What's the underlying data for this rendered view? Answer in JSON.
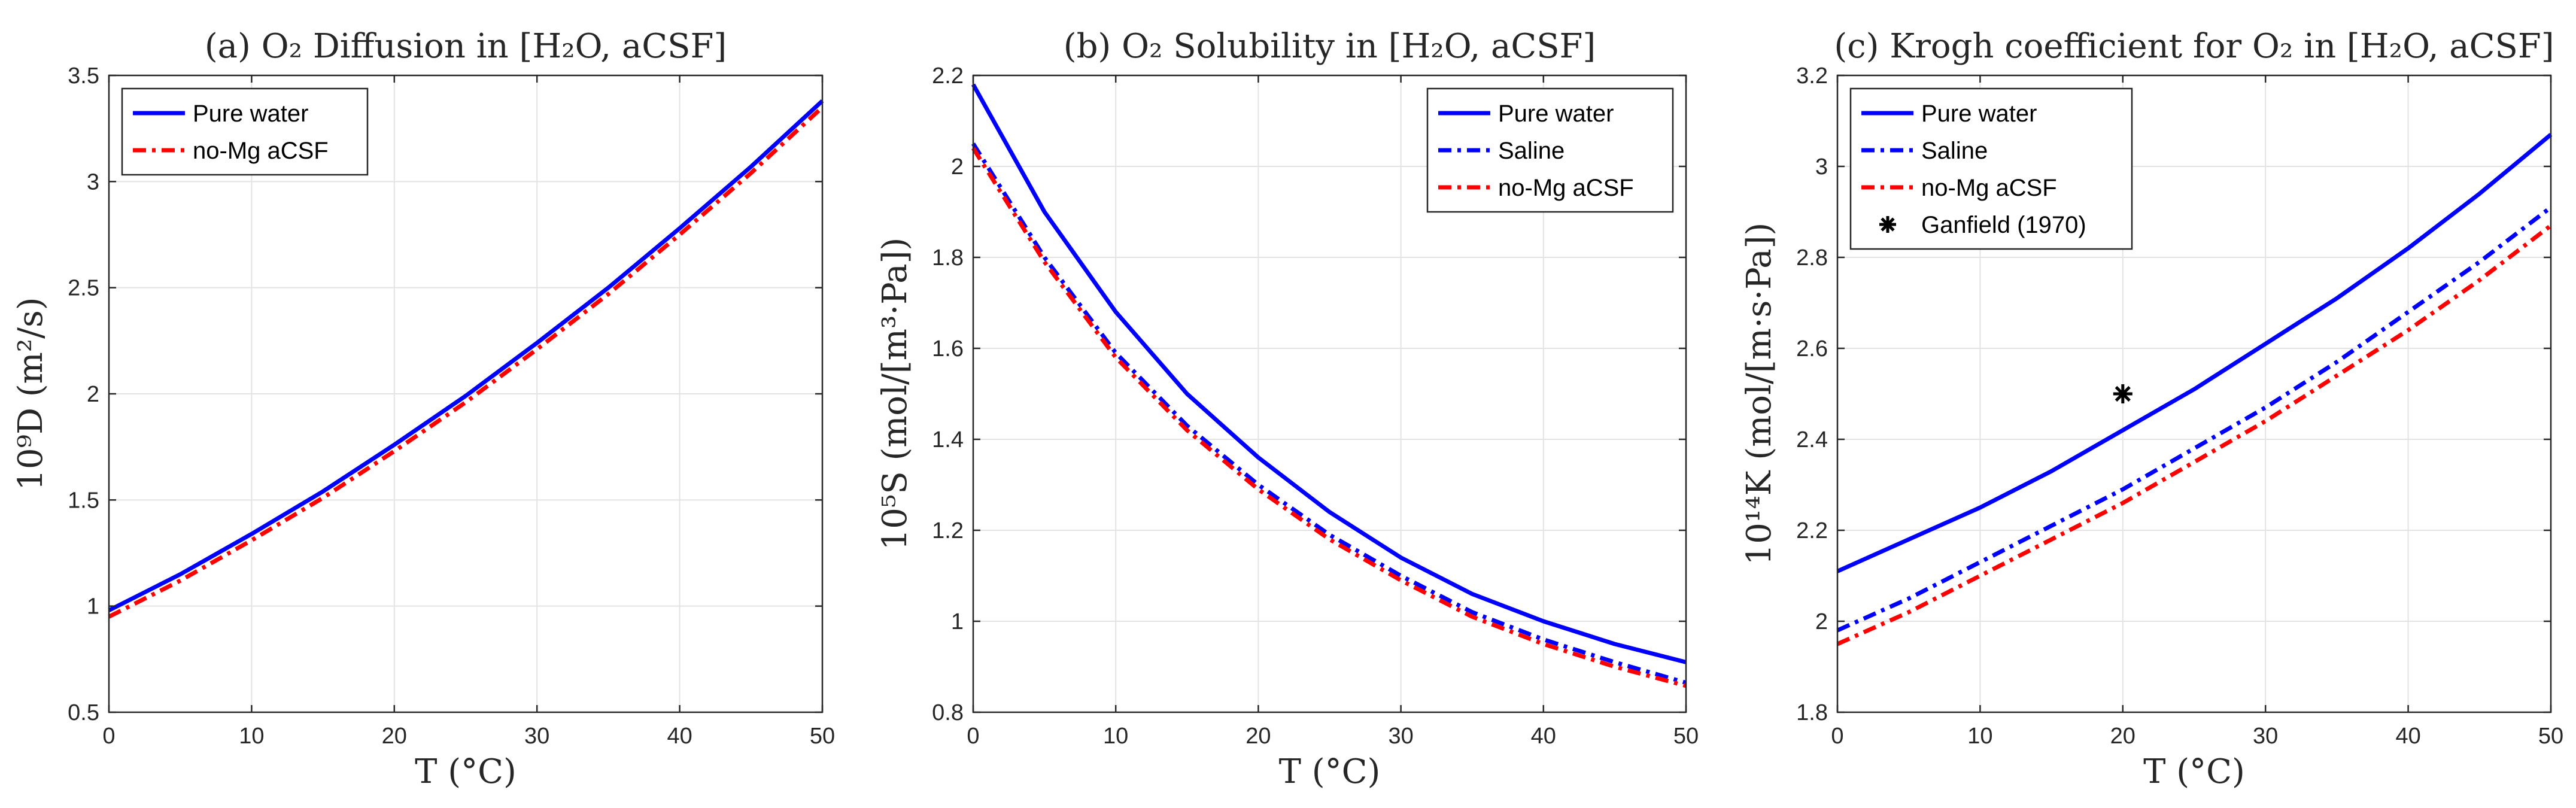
{
  "chart_data": [
    {
      "type": "line",
      "id": "a",
      "title": "(a) O₂ Diffusion in [H₂O, aCSF]",
      "xlabel": "T (°C)",
      "ylabel": "10⁹D (m²/s)",
      "xlim": [
        0,
        50
      ],
      "ylim": [
        0.5,
        3.5
      ],
      "xticks": [
        0,
        10,
        20,
        30,
        40,
        50
      ],
      "yticks": [
        0.5,
        1,
        1.5,
        2,
        2.5,
        3,
        3.5
      ],
      "ytick_labels": [
        "0.5",
        "1",
        "1.5",
        "2",
        "2.5",
        "3",
        "3.5"
      ],
      "grid": true,
      "legend_position": "top-left",
      "x": [
        0,
        5,
        10,
        15,
        20,
        25,
        30,
        35,
        40,
        45,
        50
      ],
      "series": [
        {
          "name": "Pure water",
          "color": "#0000ff",
          "style": "solid",
          "values": [
            0.98,
            1.15,
            1.34,
            1.54,
            1.76,
            1.99,
            2.24,
            2.5,
            2.78,
            3.07,
            3.38
          ]
        },
        {
          "name": "no-Mg aCSF",
          "color": "#ff0000",
          "style": "dashdot",
          "values": [
            0.95,
            1.12,
            1.31,
            1.51,
            1.73,
            1.96,
            2.21,
            2.47,
            2.75,
            3.04,
            3.35
          ]
        }
      ],
      "legend": [
        "Pure water",
        "no-Mg aCSF"
      ]
    },
    {
      "type": "line",
      "id": "b",
      "title": "(b) O₂ Solubility in [H₂O, aCSF]",
      "xlabel": "T (°C)",
      "ylabel": "10⁵S (mol/[m³·Pa])",
      "xlim": [
        0,
        50
      ],
      "ylim": [
        0.8,
        2.2
      ],
      "xticks": [
        0,
        10,
        20,
        30,
        40,
        50
      ],
      "yticks": [
        0.8,
        1,
        1.2,
        1.4,
        1.6,
        1.8,
        2,
        2.2
      ],
      "ytick_labels": [
        "0.8",
        "1",
        "1.2",
        "1.4",
        "1.6",
        "1.8",
        "2",
        "2.2"
      ],
      "grid": true,
      "legend_position": "top-right",
      "x": [
        0,
        5,
        10,
        15,
        20,
        25,
        30,
        35,
        40,
        45,
        50
      ],
      "series": [
        {
          "name": "Pure water",
          "color": "#0000ff",
          "style": "solid",
          "values": [
            2.18,
            1.9,
            1.68,
            1.5,
            1.36,
            1.24,
            1.14,
            1.06,
            1.0,
            0.95,
            0.91
          ]
        },
        {
          "name": "Saline",
          "color": "#0000ff",
          "style": "dashdot",
          "values": [
            2.05,
            1.8,
            1.59,
            1.43,
            1.3,
            1.19,
            1.1,
            1.02,
            0.96,
            0.91,
            0.865
          ]
        },
        {
          "name": "no-Mg aCSF",
          "color": "#ff0000",
          "style": "dashdot",
          "values": [
            2.04,
            1.79,
            1.58,
            1.42,
            1.29,
            1.18,
            1.09,
            1.01,
            0.95,
            0.9,
            0.858
          ]
        }
      ],
      "legend": [
        "Pure water",
        "Saline",
        "no-Mg aCSF"
      ]
    },
    {
      "type": "line",
      "id": "c",
      "title": "(c) Krogh coefficient for O₂ in [H₂O, aCSF]",
      "xlabel": "T (°C)",
      "ylabel": "10¹⁴K (mol/[m·s·Pa])",
      "xlim": [
        0,
        50
      ],
      "ylim": [
        1.8,
        3.2
      ],
      "xticks": [
        0,
        10,
        20,
        30,
        40,
        50
      ],
      "yticks": [
        1.8,
        2,
        2.2,
        2.4,
        2.6,
        2.8,
        3,
        3.2
      ],
      "ytick_labels": [
        "1.8",
        "2",
        "2.2",
        "2.4",
        "2.6",
        "2.8",
        "3",
        "3.2"
      ],
      "grid": true,
      "legend_position": "top-left",
      "x": [
        0,
        5,
        10,
        15,
        20,
        25,
        30,
        35,
        40,
        45,
        50
      ],
      "series": [
        {
          "name": "Pure water",
          "color": "#0000ff",
          "style": "solid",
          "values": [
            2.11,
            2.18,
            2.25,
            2.33,
            2.42,
            2.51,
            2.61,
            2.71,
            2.82,
            2.94,
            3.07
          ]
        },
        {
          "name": "Saline",
          "color": "#0000ff",
          "style": "dashdot",
          "values": [
            1.98,
            2.05,
            2.13,
            2.21,
            2.29,
            2.38,
            2.47,
            2.57,
            2.68,
            2.79,
            2.91
          ]
        },
        {
          "name": "no-Mg aCSF",
          "color": "#ff0000",
          "style": "dashdot",
          "values": [
            1.95,
            2.02,
            2.1,
            2.18,
            2.26,
            2.35,
            2.44,
            2.54,
            2.64,
            2.75,
            2.87
          ]
        }
      ],
      "points": [
        {
          "name": "Ganfield (1970)",
          "color": "#000000",
          "marker": "asterisk",
          "x": 20,
          "y": 2.5
        }
      ],
      "legend": [
        "Pure water",
        "Saline",
        "no-Mg aCSF",
        "Ganfield (1970)"
      ]
    }
  ]
}
